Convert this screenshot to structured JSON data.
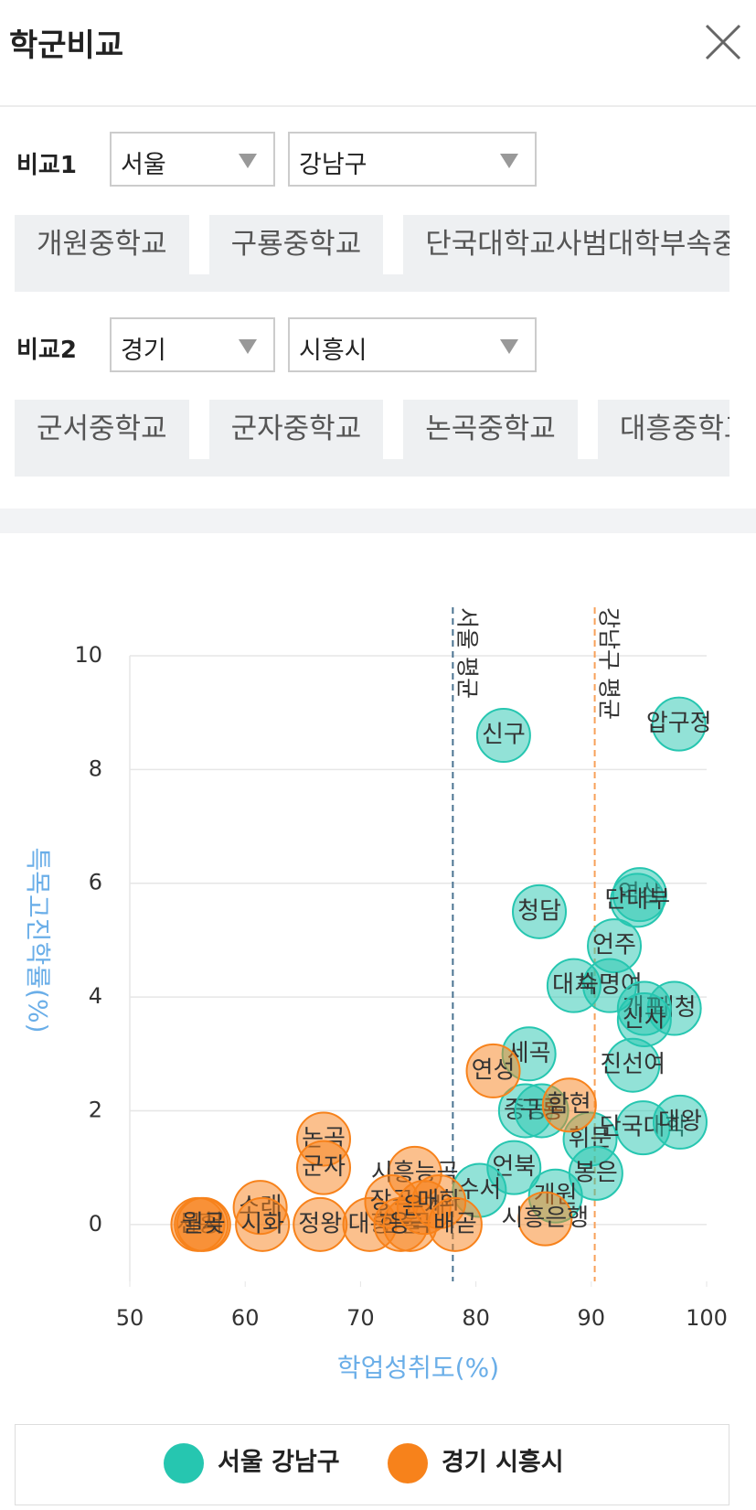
{
  "header": {
    "title": "학군비교"
  },
  "compare": [
    {
      "label": "비교1",
      "region": "서울",
      "district": "강남구",
      "schools": [
        "개원중학교",
        "구룡중학교",
        "단국대학교사범대학부속중학교"
      ]
    },
    {
      "label": "비교2",
      "region": "경기",
      "district": "시흥시",
      "schools": [
        "군서중학교",
        "군자중학교",
        "논곡중학교",
        "대흥중학교"
      ]
    }
  ],
  "chart_data": {
    "type": "scatter",
    "x_label": "학업성취도(%)",
    "y_label": "특목고진학률(%)",
    "xlim": [
      50,
      100
    ],
    "xticks": [
      50,
      60,
      70,
      80,
      90,
      100
    ],
    "ylim": [
      -1,
      10
    ],
    "yticks": [
      0,
      2,
      4,
      6,
      8,
      10
    ],
    "grid": true,
    "ref_lines": [
      {
        "label": "서울 평균",
        "x": 78.0,
        "color": "#4a7391"
      },
      {
        "label": "강남구 평균",
        "x": 90.3,
        "color": "#f7a05a"
      }
    ],
    "series": [
      {
        "name": "서울 강남구",
        "color": "#26c6b0",
        "labels": [
          "신구",
          "압구정",
          "청담",
          "역삼",
          "단대부",
          "언주",
          "대치",
          "숙명여",
          "대청",
          "개포",
          "신사",
          "세곡",
          "진선여",
          "중동",
          "구룡",
          "휘문",
          "단국대학",
          "대왕",
          "언북",
          "봉은",
          "개원",
          "수서"
        ],
        "x": [
          82.4,
          97.6,
          85.5,
          94.2,
          94.0,
          92.0,
          88.5,
          91.6,
          97.2,
          94.6,
          94.6,
          84.6,
          93.6,
          84.3,
          85.7,
          89.9,
          94.5,
          97.7,
          83.3,
          90.4,
          86.9,
          80.3
        ],
        "y": [
          8.6,
          8.8,
          5.5,
          5.8,
          5.7,
          4.9,
          4.2,
          4.2,
          3.8,
          3.8,
          3.6,
          3.0,
          2.8,
          2.0,
          2.0,
          1.5,
          1.7,
          1.8,
          1.0,
          0.9,
          0.5,
          0.6
        ]
      },
      {
        "name": "경기 시흥시",
        "color": "#f7821b",
        "labels": [
          "연성",
          "함현",
          "논곡",
          "군자",
          "시흥능곡",
          "소래",
          "시화",
          "정왕",
          "대흥",
          "시흥",
          "군서",
          "월곶",
          "장곡",
          "한울",
          "응곡",
          "은계",
          "매화",
          "배곧",
          "시흥은행"
        ],
        "x": [
          81.5,
          88.1,
          66.8,
          66.8,
          74.7,
          61.3,
          61.5,
          66.5,
          70.8,
          55.9,
          56.2,
          56.4,
          72.7,
          73.5,
          74.3,
          75.5,
          76.8,
          78.2,
          86.0
        ],
        "y": [
          2.7,
          2.1,
          1.5,
          1.0,
          0.9,
          0.3,
          0,
          0,
          0,
          0,
          0,
          0,
          0.4,
          0,
          0,
          0.3,
          0.4,
          0,
          0.1
        ]
      }
    ]
  }
}
